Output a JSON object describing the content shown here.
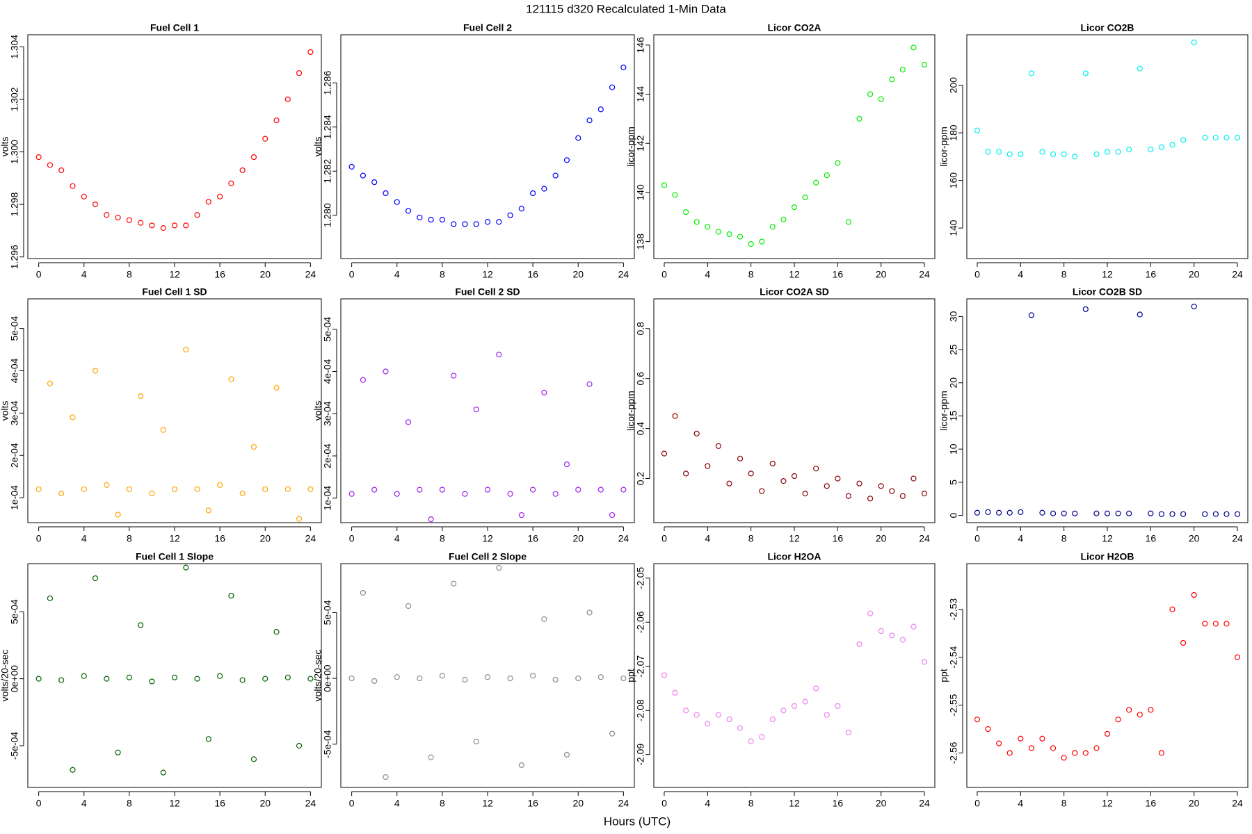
{
  "title": "121115   d320   Recalculated 1-Min Data",
  "xlabel": "Hours (UTC)",
  "chart_data": [
    {
      "type": "scatter",
      "title": "Fuel Cell 1",
      "ylabel": "volts",
      "color": "#ff0000",
      "x": [
        0,
        1,
        2,
        3,
        4,
        5,
        6,
        7,
        8,
        9,
        10,
        11,
        12,
        13,
        14,
        15,
        16,
        17,
        18,
        19,
        20,
        21,
        22,
        23,
        24
      ],
      "values": [
        1.2998,
        1.2995,
        1.2993,
        1.2987,
        1.2983,
        1.298,
        1.2976,
        1.2975,
        1.2974,
        1.2973,
        1.2972,
        1.2971,
        1.2972,
        1.2972,
        1.2976,
        1.2981,
        1.2983,
        1.2988,
        1.2993,
        1.2998,
        1.3005,
        1.3012,
        1.302,
        1.303,
        1.3038
      ],
      "xlim": [
        -0.96,
        24.96
      ],
      "xticks": [
        0,
        4,
        8,
        12,
        16,
        20,
        24
      ],
      "ylim": [
        1.29594,
        1.30446
      ],
      "yticks": [
        1.296,
        1.298,
        {
          "value": 1.3,
          "label": "1.300"
        },
        1.302,
        1.304
      ]
    },
    {
      "type": "scatter",
      "title": "Fuel Cell 2",
      "ylabel": "volts",
      "color": "#0000ff",
      "x": [
        0,
        1,
        2,
        3,
        4,
        5,
        6,
        7,
        8,
        9,
        10,
        11,
        12,
        13,
        14,
        15,
        16,
        17,
        18,
        19,
        20,
        21,
        22,
        23,
        24
      ],
      "values": [
        1.2822,
        1.2818,
        1.2815,
        1.281,
        1.2806,
        1.2802,
        1.2799,
        1.2798,
        1.2798,
        1.2796,
        1.2796,
        1.2796,
        1.2797,
        1.2797,
        1.28,
        1.2803,
        1.281,
        1.2812,
        1.2818,
        1.2825,
        1.2835,
        1.2843,
        1.2848,
        1.2858,
        1.2867
      ],
      "xlim": [
        -0.96,
        24.96
      ],
      "xticks": [
        0,
        4,
        8,
        12,
        16,
        20,
        24
      ],
      "ylim": [
        1.27804,
        1.28818
      ],
      "yticks": [
        {
          "value": 1.28,
          "label": "1.280"
        },
        1.282,
        1.284,
        1.286
      ]
    },
    {
      "type": "scatter",
      "title": "Licor CO2A",
      "ylabel": "licor-ppm",
      "color": "#00ee00",
      "x": [
        0,
        1,
        2,
        3,
        4,
        5,
        6,
        7,
        8,
        9,
        10,
        11,
        12,
        13,
        14,
        15,
        16,
        17,
        18,
        19,
        20,
        21,
        22,
        23,
        24
      ],
      "values": [
        140.3,
        139.9,
        139.2,
        138.8,
        138.6,
        138.4,
        138.3,
        138.2,
        137.9,
        138.0,
        138.6,
        138.9,
        139.4,
        139.8,
        140.4,
        140.7,
        141.2,
        138.8,
        143.0,
        144.0,
        143.8,
        144.6,
        145.0,
        145.9,
        145.2
      ],
      "xlim": [
        -0.96,
        24.96
      ],
      "xticks": [
        0,
        4,
        8,
        12,
        16,
        20,
        24
      ],
      "ylim": [
        137.31,
        146.42
      ],
      "yticks": [
        138,
        140,
        142,
        144,
        146
      ]
    },
    {
      "type": "scatter",
      "title": "Licor CO2B",
      "ylabel": "licor-ppm",
      "color": "#00eeee",
      "x": [
        0,
        1,
        2,
        3,
        4,
        5,
        6,
        7,
        8,
        9,
        10,
        11,
        12,
        13,
        14,
        15,
        16,
        17,
        18,
        19,
        20,
        21,
        22,
        23,
        24
      ],
      "values": [
        181,
        172,
        172,
        171,
        171,
        205,
        172,
        171,
        171,
        170,
        205,
        171,
        172,
        172,
        173,
        207,
        173,
        174,
        175,
        177,
        218,
        178,
        178,
        178,
        178
      ],
      "xlim": [
        -0.96,
        24.96
      ],
      "xticks": [
        0,
        4,
        8,
        12,
        16,
        20,
        24
      ],
      "ylim": [
        127.2,
        221.2
      ],
      "yticks": [
        140,
        160,
        180,
        200
      ]
    },
    {
      "type": "scatter",
      "title": "Fuel Cell 1 SD",
      "ylabel": "volts",
      "color": "#ffa500",
      "x": [
        0,
        1,
        2,
        3,
        4,
        5,
        6,
        7,
        8,
        9,
        10,
        11,
        12,
        13,
        14,
        15,
        16,
        17,
        18,
        19,
        20,
        21,
        22,
        23,
        24
      ],
      "values": [
        0.00012,
        0.00037,
        0.00011,
        0.00029,
        0.00012,
        0.0004,
        0.00013,
        6e-05,
        0.00012,
        0.00034,
        0.00011,
        0.00026,
        0.00012,
        0.00045,
        0.00012,
        7e-05,
        0.00013,
        0.00038,
        0.00011,
        0.00022,
        0.00012,
        0.00036,
        0.00012,
        5e-05,
        0.00012
      ],
      "xlim": [
        -0.96,
        24.96
      ],
      "xticks": [
        0,
        4,
        8,
        12,
        16,
        20,
        24
      ],
      "ylim": [
        4.1e-05,
        0.00057
      ],
      "yticks": [
        {
          "value": 0.0001,
          "label": "1e-04"
        },
        {
          "value": 0.0002,
          "label": "2e-04"
        },
        {
          "value": 0.0003,
          "label": "3e-04"
        },
        {
          "value": 0.0004,
          "label": "4e-04"
        },
        {
          "value": 0.0005,
          "label": "5e-04"
        }
      ]
    },
    {
      "type": "scatter",
      "title": "Fuel Cell 2 SD",
      "ylabel": "volts",
      "color": "#a020f0",
      "x": [
        0,
        1,
        2,
        3,
        4,
        5,
        6,
        7,
        8,
        9,
        10,
        11,
        12,
        13,
        14,
        15,
        16,
        17,
        18,
        19,
        20,
        21,
        22,
        23,
        24
      ],
      "values": [
        0.00011,
        0.00038,
        0.00012,
        0.0004,
        0.00011,
        0.00028,
        0.00012,
        5e-05,
        0.00012,
        0.00039,
        0.00011,
        0.00031,
        0.00012,
        0.00044,
        0.00011,
        6e-05,
        0.00012,
        0.00035,
        0.00011,
        0.00018,
        0.00012,
        0.00037,
        0.00012,
        6e-05,
        0.00012
      ],
      "xlim": [
        -0.96,
        24.96
      ],
      "xticks": [
        0,
        4,
        8,
        12,
        16,
        20,
        24
      ],
      "ylim": [
        4.2e-05,
        0.000572
      ],
      "yticks": [
        {
          "value": 0.0001,
          "label": "1e-04"
        },
        {
          "value": 0.0002,
          "label": "2e-04"
        },
        {
          "value": 0.0003,
          "label": "3e-04"
        },
        {
          "value": 0.0004,
          "label": "4e-04"
        },
        {
          "value": 0.0005,
          "label": "5e-04"
        }
      ]
    },
    {
      "type": "scatter",
      "title": "Licor CO2A SD",
      "ylabel": "licor-ppm",
      "color": "#8b0000",
      "x": [
        0,
        1,
        2,
        3,
        4,
        5,
        6,
        7,
        8,
        9,
        10,
        11,
        12,
        13,
        14,
        15,
        16,
        17,
        18,
        19,
        20,
        21,
        22,
        23,
        24
      ],
      "values": [
        0.3,
        0.45,
        0.22,
        0.38,
        0.25,
        0.33,
        0.18,
        0.28,
        0.22,
        0.15,
        0.26,
        0.19,
        0.21,
        0.14,
        0.24,
        0.17,
        0.2,
        0.13,
        0.18,
        0.12,
        0.17,
        0.15,
        0.13,
        0.2,
        0.14
      ],
      "xlim": [
        -0.96,
        24.96
      ],
      "xticks": [
        0,
        4,
        8,
        12,
        16,
        20,
        24
      ],
      "ylim": [
        0.0236,
        0.919
      ],
      "yticks": [
        0.2,
        0.4,
        0.6,
        0.8
      ]
    },
    {
      "type": "scatter",
      "title": "Licor CO2B SD",
      "ylabel": "licor-ppm",
      "color": "#00008b",
      "x": [
        0,
        1,
        2,
        3,
        4,
        5,
        6,
        7,
        8,
        9,
        10,
        11,
        12,
        13,
        14,
        15,
        16,
        17,
        18,
        19,
        20,
        21,
        22,
        23,
        24
      ],
      "values": [
        0.4,
        0.5,
        0.4,
        0.4,
        0.5,
        30.2,
        0.4,
        0.3,
        0.3,
        0.3,
        31.1,
        0.3,
        0.3,
        0.3,
        0.3,
        30.3,
        0.3,
        0.2,
        0.2,
        0.2,
        31.5,
        0.2,
        0.2,
        0.2,
        0.2
      ],
      "xlim": [
        -0.96,
        24.96
      ],
      "xticks": [
        0,
        4,
        8,
        12,
        16,
        20,
        24
      ],
      "ylim": [
        -1.09,
        32.66
      ],
      "yticks": [
        0,
        5,
        10,
        15,
        20,
        25,
        30
      ]
    },
    {
      "type": "scatter",
      "title": "Fuel Cell 1 Slope",
      "ylabel": "volts/20-sec",
      "color": "#006400",
      "x": [
        0,
        1,
        2,
        3,
        4,
        5,
        6,
        7,
        8,
        9,
        10,
        11,
        12,
        13,
        14,
        15,
        16,
        17,
        18,
        19,
        20,
        21,
        22,
        23,
        24
      ],
      "values": [
        0,
        0.0006,
        -1e-05,
        -0.00068,
        2e-05,
        0.00075,
        0,
        -0.00055,
        1e-05,
        0.0004,
        -2e-05,
        -0.0007,
        1e-05,
        0.00083,
        0,
        -0.00045,
        2e-05,
        0.00062,
        -1e-05,
        -0.0006,
        0,
        0.00035,
        1e-05,
        -0.0005,
        0
      ],
      "xlim": [
        -0.96,
        24.96
      ],
      "xticks": [
        0,
        4,
        8,
        12,
        16,
        20,
        24
      ],
      "ylim": [
        -0.000811,
        0.000859
      ],
      "yticks": [
        {
          "value": -0.0005,
          "label": "-5e-04"
        },
        {
          "value": 0,
          "label": "0e+00"
        },
        {
          "value": 0.0005,
          "label": "5e-04"
        }
      ]
    },
    {
      "type": "scatter",
      "title": "Fuel Cell 2 Slope",
      "ylabel": "volts/20-sec",
      "color": "#8c8c8c",
      "x": [
        0,
        1,
        2,
        3,
        4,
        5,
        6,
        7,
        8,
        9,
        10,
        11,
        12,
        13,
        14,
        15,
        16,
        17,
        18,
        19,
        20,
        21,
        22,
        23,
        24
      ],
      "values": [
        0,
        0.00065,
        -2e-05,
        -0.00075,
        1e-05,
        0.00055,
        0,
        -0.0006,
        2e-05,
        0.00072,
        -1e-05,
        -0.00048,
        1e-05,
        0.00084,
        0,
        -0.00066,
        2e-05,
        0.00045,
        -1e-05,
        -0.00058,
        0,
        0.0005,
        1e-05,
        -0.00042,
        0
      ],
      "xlim": [
        -0.96,
        24.96
      ],
      "xticks": [
        0,
        4,
        8,
        12,
        16,
        20,
        24
      ],
      "ylim": [
        -0.000829,
        0.000872
      ],
      "yticks": [
        {
          "value": -0.0005,
          "label": "-5e-04"
        },
        {
          "value": 0,
          "label": "0e+00"
        },
        {
          "value": 0.0005,
          "label": "5e-04"
        }
      ]
    },
    {
      "type": "scatter",
      "title": "Licor H2OA",
      "ylabel": "ppt",
      "color": "#ee82ee",
      "x": [
        0,
        1,
        2,
        3,
        4,
        5,
        6,
        7,
        8,
        9,
        10,
        11,
        12,
        13,
        14,
        15,
        16,
        17,
        18,
        19,
        20,
        21,
        22,
        23,
        24
      ],
      "values": [
        -2.072,
        -2.076,
        -2.08,
        -2.081,
        -2.083,
        -2.081,
        -2.082,
        -2.084,
        -2.087,
        -2.086,
        -2.082,
        -2.08,
        -2.079,
        -2.078,
        -2.075,
        -2.081,
        -2.079,
        -2.085,
        -2.065,
        -2.058,
        -2.062,
        -2.063,
        -2.064,
        -2.061,
        -2.069
      ],
      "xlim": [
        -0.96,
        24.96
      ],
      "xticks": [
        0,
        4,
        8,
        12,
        16,
        20,
        24
      ],
      "ylim": [
        -2.09745,
        -2.04673
      ],
      "yticks": [
        -2.09,
        -2.08,
        -2.07,
        -2.06,
        -2.05
      ]
    },
    {
      "type": "scatter",
      "title": "Licor H2OB",
      "ylabel": "ppt",
      "color": "#ff0000",
      "x": [
        0,
        1,
        2,
        3,
        4,
        5,
        6,
        7,
        8,
        9,
        10,
        11,
        12,
        13,
        14,
        15,
        16,
        17,
        18,
        19,
        20,
        21,
        22,
        23,
        24
      ],
      "values": [
        -2.553,
        -2.555,
        -2.558,
        -2.56,
        -2.557,
        -2.559,
        -2.557,
        -2.559,
        -2.561,
        -2.56,
        -2.56,
        -2.559,
        -2.556,
        -2.553,
        -2.551,
        -2.552,
        -2.551,
        -2.56,
        -2.53,
        -2.537,
        -2.527,
        -2.533,
        -2.533,
        -2.533,
        -2.54
      ],
      "xlim": [
        -0.96,
        24.96
      ],
      "xticks": [
        0,
        4,
        8,
        12,
        16,
        20,
        24
      ],
      "ylim": [
        -2.5672,
        -2.52045
      ],
      "yticks": [
        -2.56,
        -2.55,
        -2.54,
        -2.53
      ]
    }
  ]
}
